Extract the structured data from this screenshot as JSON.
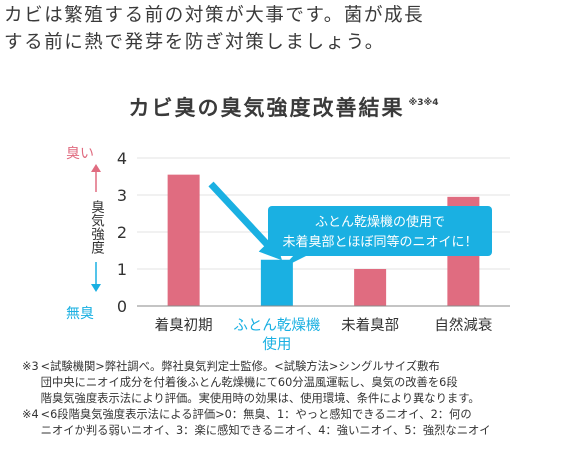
{
  "intro": {
    "line1": "カビは繁殖する前の対策が大事です。菌が成長",
    "line2": "する前に熱で発芽を防ぎ対策しましょう。"
  },
  "chart_data": {
    "type": "bar",
    "title": "カビ臭の臭気強度改善結果",
    "title_note": "※3※4",
    "categories": [
      "着臭初期",
      "ふとん乾燥機\n使用",
      "未着臭部",
      "自然減衰"
    ],
    "values": [
      3.55,
      1.25,
      1.0,
      2.95
    ],
    "bar_colors": [
      "#e06c80",
      "#1ab0e2",
      "#e06c80",
      "#e06c80"
    ],
    "category_label_colors": [
      "#333333",
      "#1ab0e2",
      "#333333",
      "#333333"
    ],
    "ylabel": "臭気強度",
    "ylabel_top": "臭い",
    "ylabel_bottom": "無臭",
    "ylabel_colors": {
      "top": "#e06c80",
      "bottom": "#1ab0e2"
    },
    "ylim": [
      0,
      4
    ],
    "yticks": [
      0,
      1,
      2,
      3,
      4
    ],
    "grid": true,
    "annotation": {
      "text_line1": "ふとん乾燥機の使用で",
      "text_line2": "未着臭部とほぼ同等のニオイに！",
      "color": "#1ab0e2"
    }
  },
  "notes": [
    {
      "mark": "※3",
      "lines": [
        "<試験機関>弊社調べ。弊社臭気判定士監修。<試験方法>シングルサイズ敷布",
        "団中央にニオイ成分を付着後ふとん乾燥機にて60分温風運転し、臭気の改善を6段",
        "階臭気強度表示法により評価。実使用時の効果は、使用環境、条件により異なります。"
      ]
    },
    {
      "mark": "※4",
      "lines": [
        "<6段階臭気強度表示法による評価>0：無臭、1：やっと感知できるニオイ、2：何の",
        "ニオイか判る弱いニオイ、3：楽に感知できるニオイ、4：強いニオイ、5：強烈なニオイ"
      ]
    }
  ]
}
